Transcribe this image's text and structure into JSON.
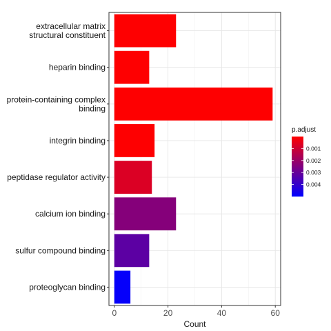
{
  "chart_data": {
    "type": "bar",
    "orientation": "horizontal",
    "categories": [
      "extracellular matrix\nstructural constituent",
      "heparin binding",
      "protein-containing complex\nbinding",
      "integrin binding",
      "peptidase regulator activity",
      "calcium ion binding",
      "sulfur compound binding",
      "proteoglycan binding"
    ],
    "values": [
      23,
      13,
      59,
      15,
      14,
      23,
      13,
      6
    ],
    "p_adjust": [
      1e-05,
      1e-05,
      1e-05,
      1e-05,
      0.0007,
      0.0024,
      0.0032,
      0.0049
    ],
    "xlabel": "Count",
    "ylabel": "",
    "xlim": [
      -2,
      62
    ],
    "x_ticks": [
      0,
      20,
      40,
      60
    ],
    "grid": true,
    "legend": {
      "title": "p.adjust",
      "placement": "right",
      "type": "colorbar",
      "range": [
        0,
        0.005
      ],
      "ticks": [
        0.001,
        0.002,
        0.003,
        0.004
      ],
      "tick_labels": [
        "0.001",
        "0.002",
        "0.003",
        "0.004"
      ],
      "color_low": "#ff0000",
      "color_high": "#0000ff"
    }
  }
}
